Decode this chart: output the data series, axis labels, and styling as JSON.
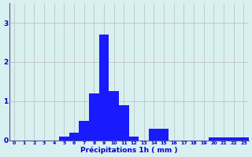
{
  "categories": [
    0,
    1,
    2,
    3,
    4,
    5,
    6,
    7,
    8,
    9,
    10,
    11,
    12,
    13,
    14,
    15,
    16,
    17,
    18,
    19,
    20,
    21,
    22,
    23
  ],
  "values": [
    0,
    0,
    0,
    0,
    0,
    0.1,
    0.2,
    0.5,
    1.2,
    2.7,
    1.25,
    0.9,
    0.1,
    0,
    0.3,
    0.3,
    0,
    0,
    0,
    0,
    0.07,
    0.07,
    0.07,
    0.07
  ],
  "bar_color": "#1a1aff",
  "background_color": "#d8f0f0",
  "grid_color": "#bbbbbb",
  "text_color": "#0000cc",
  "xlabel": "Précipitations 1h ( mm )",
  "ylim": [
    0,
    3.5
  ],
  "yticks": [
    0,
    1,
    2,
    3
  ],
  "xlim": [
    -0.5,
    23.5
  ]
}
